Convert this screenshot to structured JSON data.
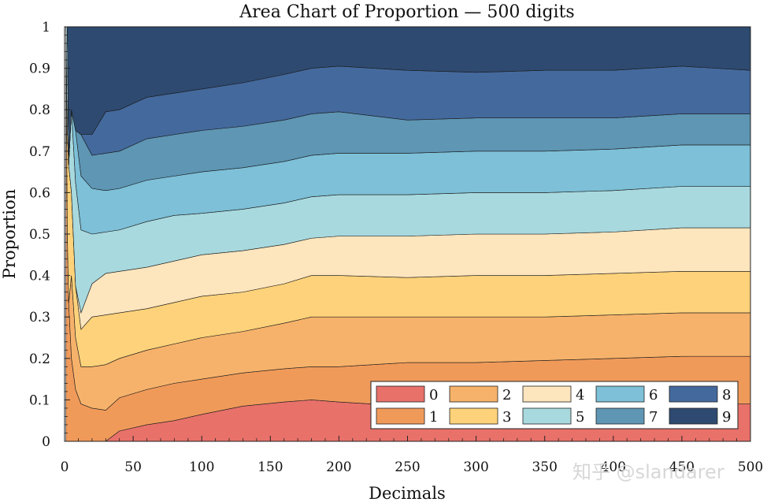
{
  "chart_data": {
    "type": "area",
    "stacked": true,
    "title": "Area Chart of Proportion — 500 digits",
    "xlabel": "Decimals",
    "ylabel": "Proportion",
    "xlim": [
      0,
      500
    ],
    "ylim": [
      0,
      1
    ],
    "xticks": [
      "0",
      "50",
      "100",
      "150",
      "200",
      "250",
      "300",
      "350",
      "400",
      "450",
      "500"
    ],
    "yticks": [
      "0",
      "0.1",
      "0.2",
      "0.3",
      "0.4",
      "0.5",
      "0.6",
      "0.7",
      "0.8",
      "0.9",
      "1"
    ],
    "x": [
      1,
      2,
      3,
      5,
      8,
      12,
      20,
      30,
      40,
      60,
      80,
      100,
      130,
      160,
      180,
      200,
      250,
      300,
      350,
      400,
      450,
      500
    ],
    "series": [
      {
        "name": "0",
        "color": "#e8716a",
        "values": [
          0.0,
          0.0,
          0.0,
          0.0,
          0.0,
          0.0,
          0.0,
          0.0,
          0.025,
          0.04,
          0.05,
          0.065,
          0.085,
          0.095,
          0.1,
          0.095,
          0.085,
          0.085,
          0.09,
          0.09,
          0.09,
          0.09
        ]
      },
      {
        "name": "1",
        "color": "#f09a5a",
        "values": [
          1.0,
          0.5,
          0.333,
          0.2,
          0.125,
          0.09,
          0.08,
          0.075,
          0.08,
          0.085,
          0.09,
          0.085,
          0.08,
          0.08,
          0.08,
          0.085,
          0.105,
          0.105,
          0.105,
          0.11,
          0.115,
          0.115
        ]
      },
      {
        "name": "2",
        "color": "#f6b26b",
        "values": [
          0.0,
          0.0,
          0.0,
          0.2,
          0.125,
          0.09,
          0.1,
          0.11,
          0.095,
          0.095,
          0.095,
          0.1,
          0.1,
          0.11,
          0.12,
          0.12,
          0.11,
          0.11,
          0.105,
          0.105,
          0.105,
          0.105
        ]
      },
      {
        "name": "3",
        "color": "#fdd27a",
        "values": [
          0.0,
          0.25,
          0.333,
          0.2,
          0.125,
          0.09,
          0.12,
          0.12,
          0.11,
          0.1,
          0.1,
          0.1,
          0.095,
          0.095,
          0.1,
          0.1,
          0.095,
          0.1,
          0.1,
          0.1,
          0.1,
          0.1
        ]
      },
      {
        "name": "4",
        "color": "#fde5bd",
        "values": [
          0.0,
          0.0,
          0.0,
          0.0,
          0.0,
          0.04,
          0.08,
          0.1,
          0.1,
          0.1,
          0.1,
          0.1,
          0.1,
          0.095,
          0.09,
          0.095,
          0.1,
          0.1,
          0.1,
          0.1,
          0.105,
          0.105
        ]
      },
      {
        "name": "5",
        "color": "#a8d9de",
        "values": [
          0.0,
          0.25,
          0.0,
          0.2,
          0.25,
          0.2,
          0.12,
          0.1,
          0.1,
          0.11,
          0.11,
          0.1,
          0.1,
          0.1,
          0.1,
          0.1,
          0.1,
          0.1,
          0.1,
          0.1,
          0.1,
          0.1
        ]
      },
      {
        "name": "6",
        "color": "#7dc0d8",
        "values": [
          0.0,
          0.0,
          0.0,
          0.0,
          0.125,
          0.13,
          0.11,
          0.1,
          0.1,
          0.1,
          0.095,
          0.1,
          0.1,
          0.1,
          0.1,
          0.1,
          0.1,
          0.1,
          0.1,
          0.1,
          0.1,
          0.1
        ]
      },
      {
        "name": "7",
        "color": "#5e96b4",
        "values": [
          0.0,
          0.0,
          0.0,
          0.0,
          0.0,
          0.1,
          0.08,
          0.09,
          0.09,
          0.1,
          0.1,
          0.1,
          0.1,
          0.1,
          0.1,
          0.1,
          0.08,
          0.08,
          0.08,
          0.075,
          0.075,
          0.075
        ]
      },
      {
        "name": "8",
        "color": "#44699d",
        "values": [
          0.0,
          0.0,
          0.0,
          0.0,
          0.0,
          0.0,
          0.05,
          0.1,
          0.1,
          0.1,
          0.1,
          0.1,
          0.105,
          0.11,
          0.11,
          0.11,
          0.12,
          0.11,
          0.115,
          0.115,
          0.115,
          0.105
        ]
      },
      {
        "name": "9",
        "color": "#2e4a70",
        "values": [
          0.0,
          0.0,
          0.334,
          0.2,
          0.25,
          0.26,
          0.26,
          0.205,
          0.2,
          0.17,
          0.16,
          0.15,
          0.135,
          0.115,
          0.1,
          0.095,
          0.105,
          0.11,
          0.105,
          0.105,
          0.095,
          0.105
        ]
      }
    ],
    "legend": {
      "position": "bottom-right",
      "columns": 5
    }
  },
  "watermark": "知乎 @slandarer"
}
